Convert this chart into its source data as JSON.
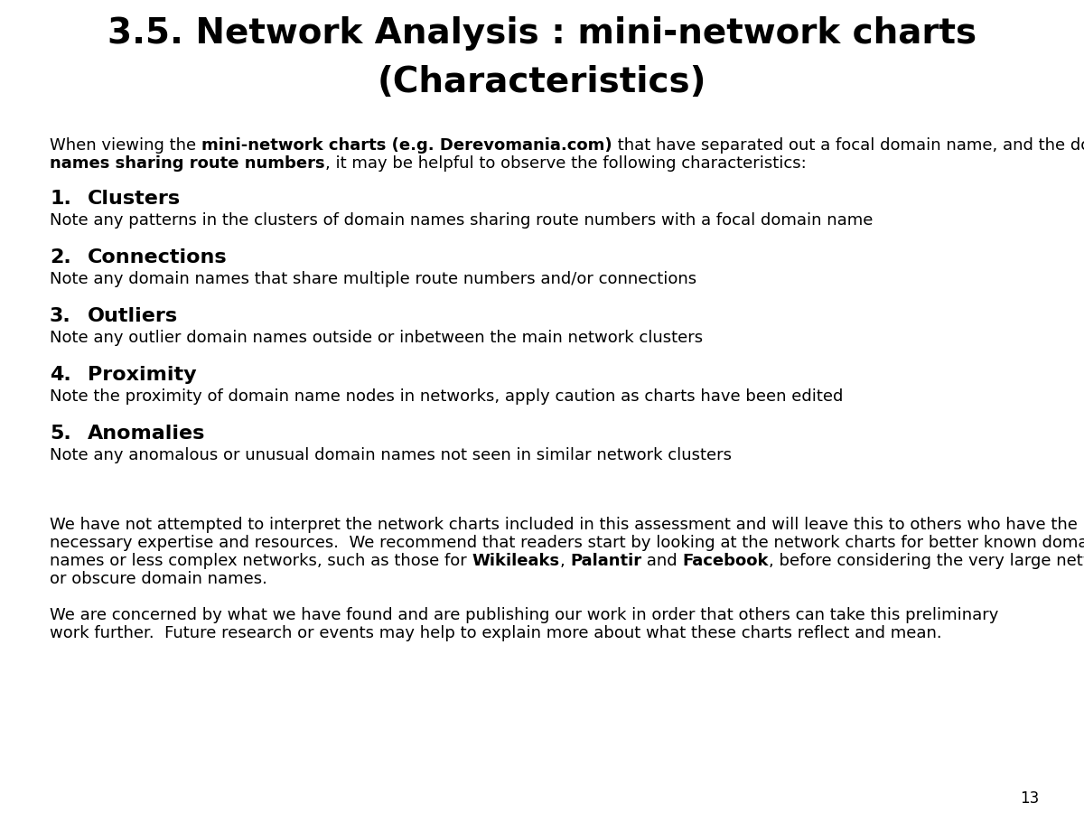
{
  "title_line1": "3.5. Network Analysis : mini-network charts",
  "title_line2": "(Characteristics)",
  "sections": [
    {
      "number": "1.",
      "heading": "Clusters",
      "body": "Note any patterns in the clusters of domain names sharing route numbers with a focal domain name"
    },
    {
      "number": "2.",
      "heading": "Connections",
      "body": "Note any domain names that share multiple route numbers and/or connections"
    },
    {
      "number": "3.",
      "heading": "Outliers",
      "body": "Note any outlier domain names outside or inbetween the main network clusters"
    },
    {
      "number": "4.",
      "heading": "Proximity",
      "body": "Note the proximity of domain name nodes in networks, apply caution as charts have been edited"
    },
    {
      "number": "5.",
      "heading": "Anomalies",
      "body": "Note any anomalous or unusual domain names not seen in similar network clusters"
    }
  ],
  "page_number": "13",
  "bg_color": "#ffffff",
  "text_color": "#000000",
  "title_fontsize": 28,
  "heading_fontsize": 16,
  "body_fontsize": 13,
  "intro_fontsize": 13,
  "footer_fontsize": 13
}
